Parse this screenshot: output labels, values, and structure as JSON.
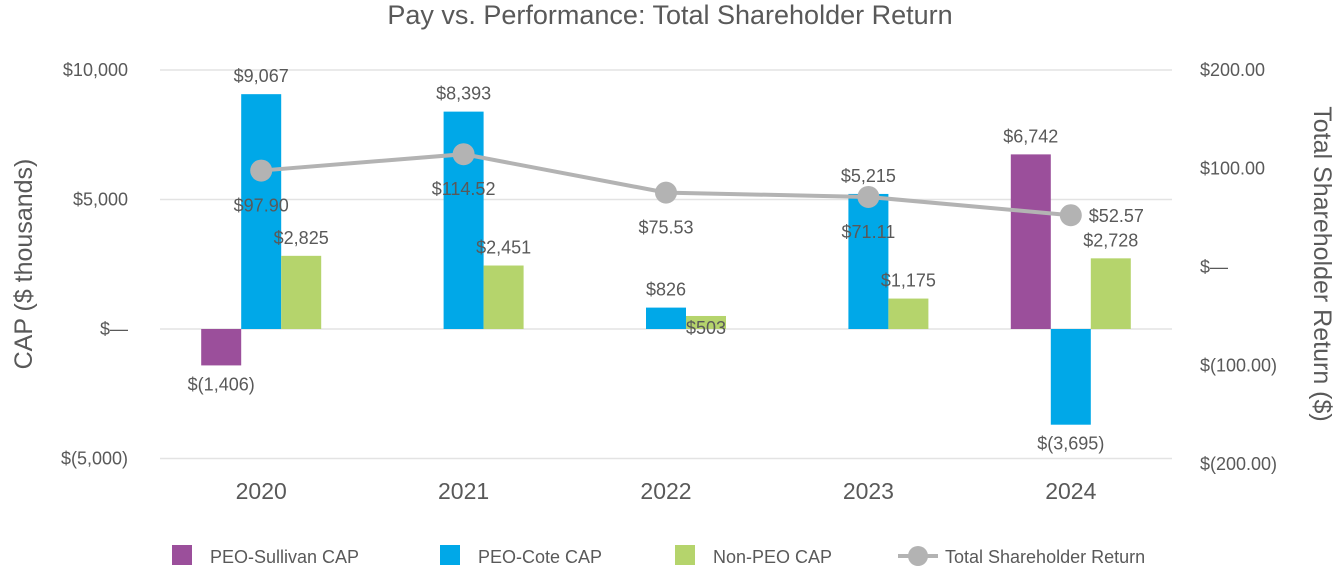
{
  "chart_data": {
    "type": "bar",
    "title": "Pay vs. Performance: Total Shareholder Return",
    "categories": [
      "2020",
      "2021",
      "2022",
      "2023",
      "2024"
    ],
    "ylabel": "CAP ($ thousands)",
    "y2label": "Total Shareholder Return ($)",
    "ylim": [
      -5000,
      10000
    ],
    "y2lim": [
      -200,
      200
    ],
    "yticks": [
      10000,
      5000,
      0,
      -5000
    ],
    "ytick_labels": [
      "$10,000",
      "$5,000",
      "$—",
      "$(5,000)"
    ],
    "y2ticks": [
      200,
      100,
      0,
      -100,
      -200
    ],
    "y2tick_labels": [
      "$200.00",
      "$100.00",
      "$—",
      "$(100.00)",
      "$(200.00)"
    ],
    "grid": true,
    "legend_position": "bottom",
    "series": [
      {
        "name": "PEO-Sullivan CAP",
        "type": "bar",
        "color": "#9b4f9b",
        "values": [
          -1406,
          null,
          null,
          null,
          6742
        ],
        "labels": [
          "$(1,406)",
          "",
          "",
          "",
          "$6,742"
        ]
      },
      {
        "name": "PEO-Cote CAP",
        "type": "bar",
        "color": "#00a8e8",
        "values": [
          9067,
          8393,
          826,
          5215,
          -3695
        ],
        "labels": [
          "$9,067",
          "$8,393",
          "$826",
          "$5,215",
          "$(3,695)"
        ]
      },
      {
        "name": "Non-PEO CAP",
        "type": "bar",
        "color": "#b5d46c",
        "values": [
          2825,
          2451,
          503,
          1175,
          2728
        ],
        "labels": [
          "$2,825",
          "$2,451",
          "$503",
          "$1,175",
          "$2,728"
        ]
      },
      {
        "name": "Total Shareholder Return",
        "type": "line",
        "axis": "right",
        "color": "#b3b3b3",
        "values": [
          97.9,
          114.52,
          75.53,
          71.11,
          52.57
        ],
        "labels": [
          "$97.90",
          "$114.52",
          "$75.53",
          "$71.11",
          "$52.57"
        ]
      }
    ]
  }
}
